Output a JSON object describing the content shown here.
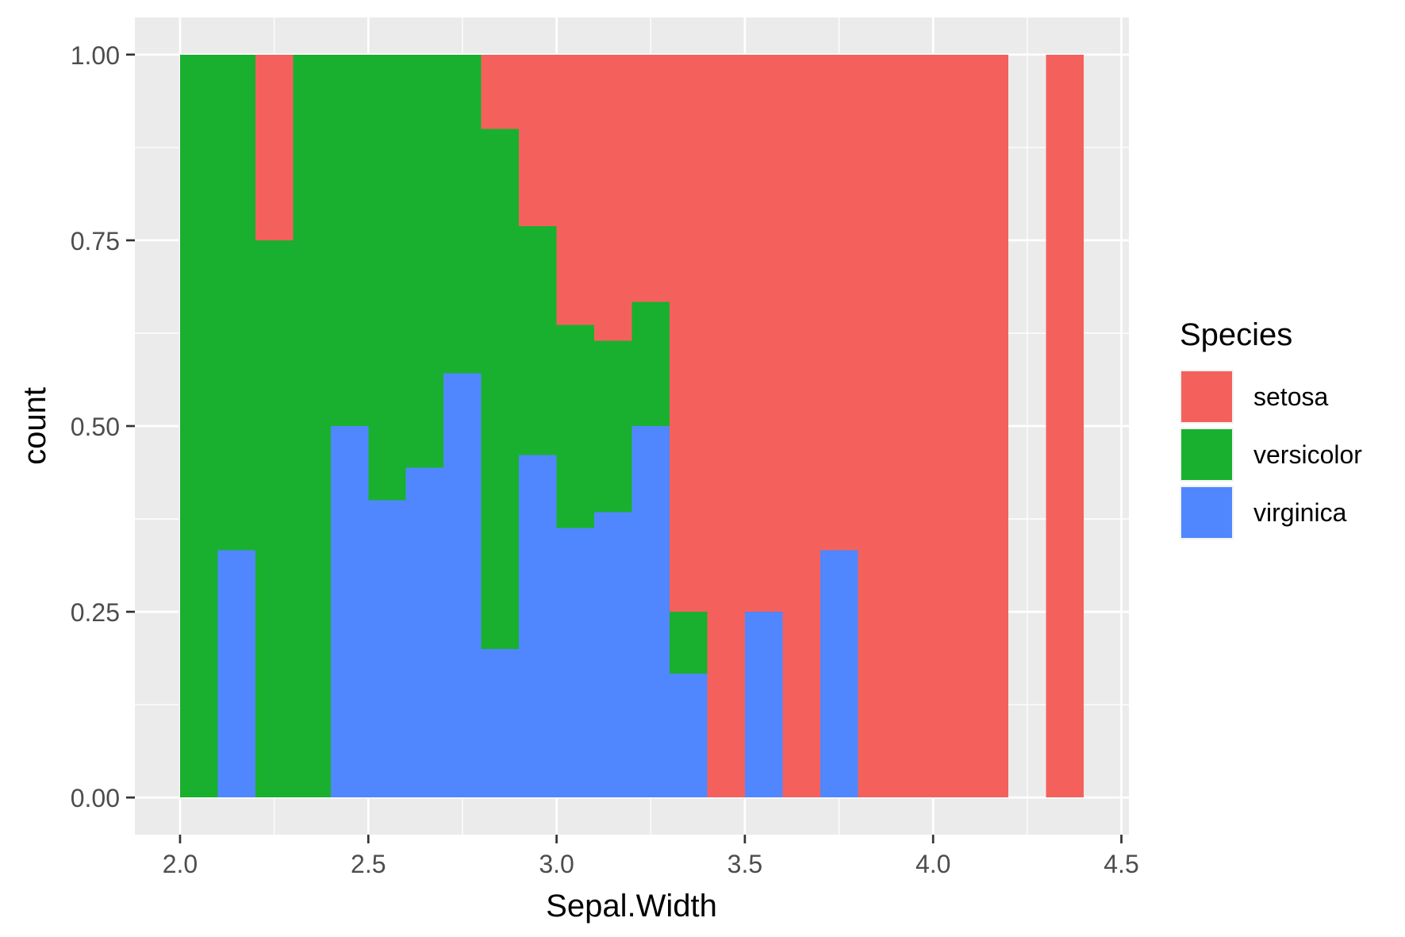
{
  "chart_data": {
    "type": "bar",
    "stacking": "fill",
    "xlabel": "Sepal.Width",
    "ylabel": "count",
    "xlim": [
      1.88,
      4.52
    ],
    "ylim": [
      -0.05,
      1.05
    ],
    "xticks": [
      2.0,
      2.5,
      3.0,
      3.5,
      4.0,
      4.5
    ],
    "xtick_labels": [
      "2.0",
      "2.5",
      "3.0",
      "3.5",
      "4.0",
      "4.5"
    ],
    "yticks": [
      0,
      0.25,
      0.5,
      0.75,
      1.0
    ],
    "ytick_labels": [
      "0.00",
      "0.25",
      "0.50",
      "0.75",
      "1.00"
    ],
    "grid": true,
    "legend": {
      "title": "Species",
      "position": "right",
      "entries": [
        "setosa",
        "versicolor",
        "virginica"
      ]
    },
    "series": [
      {
        "name": "setosa",
        "color": "#F4615C"
      },
      {
        "name": "versicolor",
        "color": "#19B02F"
      },
      {
        "name": "virginica",
        "color": "#5087FF"
      }
    ],
    "bins": [
      {
        "x0": 2.0,
        "x1": 2.1,
        "setosa": 0,
        "versicolor": 1.0,
        "virginica": 0
      },
      {
        "x0": 2.1,
        "x1": 2.2,
        "setosa": 0,
        "versicolor": 0.667,
        "virginica": 0.333
      },
      {
        "x0": 2.2,
        "x1": 2.3,
        "setosa": 0.25,
        "versicolor": 0.75,
        "virginica": 0
      },
      {
        "x0": 2.3,
        "x1": 2.4,
        "setosa": 0,
        "versicolor": 1.0,
        "virginica": 0
      },
      {
        "x0": 2.4,
        "x1": 2.5,
        "setosa": 0,
        "versicolor": 0.5,
        "virginica": 0.5
      },
      {
        "x0": 2.5,
        "x1": 2.6,
        "setosa": 0,
        "versicolor": 0.6,
        "virginica": 0.4
      },
      {
        "x0": 2.6,
        "x1": 2.7,
        "setosa": 0,
        "versicolor": 0.556,
        "virginica": 0.444
      },
      {
        "x0": 2.7,
        "x1": 2.8,
        "setosa": 0,
        "versicolor": 0.429,
        "virginica": 0.571
      },
      {
        "x0": 2.8,
        "x1": 2.9,
        "setosa": 0.1,
        "versicolor": 0.7,
        "virginica": 0.2
      },
      {
        "x0": 2.9,
        "x1": 3.0,
        "setosa": 0.231,
        "versicolor": 0.308,
        "virginica": 0.461
      },
      {
        "x0": 3.0,
        "x1": 3.1,
        "setosa": 0.364,
        "versicolor": 0.273,
        "virginica": 0.363
      },
      {
        "x0": 3.1,
        "x1": 3.2,
        "setosa": 0.385,
        "versicolor": 0.231,
        "virginica": 0.384
      },
      {
        "x0": 3.2,
        "x1": 3.3,
        "setosa": 0.333,
        "versicolor": 0.167,
        "virginica": 0.5
      },
      {
        "x0": 3.3,
        "x1": 3.4,
        "setosa": 0.75,
        "versicolor": 0.083,
        "virginica": 0.167
      },
      {
        "x0": 3.4,
        "x1": 3.5,
        "setosa": 1.0,
        "versicolor": 0,
        "virginica": 0
      },
      {
        "x0": 3.5,
        "x1": 3.6,
        "setosa": 0.75,
        "versicolor": 0,
        "virginica": 0.25
      },
      {
        "x0": 3.6,
        "x1": 3.7,
        "setosa": 1.0,
        "versicolor": 0,
        "virginica": 0
      },
      {
        "x0": 3.7,
        "x1": 3.8,
        "setosa": 0.667,
        "versicolor": 0,
        "virginica": 0.333
      },
      {
        "x0": 3.8,
        "x1": 3.9,
        "setosa": 1.0,
        "versicolor": 0,
        "virginica": 0
      },
      {
        "x0": 3.9,
        "x1": 4.0,
        "setosa": 1.0,
        "versicolor": 0,
        "virginica": 0
      },
      {
        "x0": 4.0,
        "x1": 4.1,
        "setosa": 1.0,
        "versicolor": 0,
        "virginica": 0
      },
      {
        "x0": 4.1,
        "x1": 4.2,
        "setosa": 1.0,
        "versicolor": 0,
        "virginica": 0
      },
      {
        "x0": 4.3,
        "x1": 4.4,
        "setosa": 1.0,
        "versicolor": 0,
        "virginica": 0
      }
    ]
  }
}
